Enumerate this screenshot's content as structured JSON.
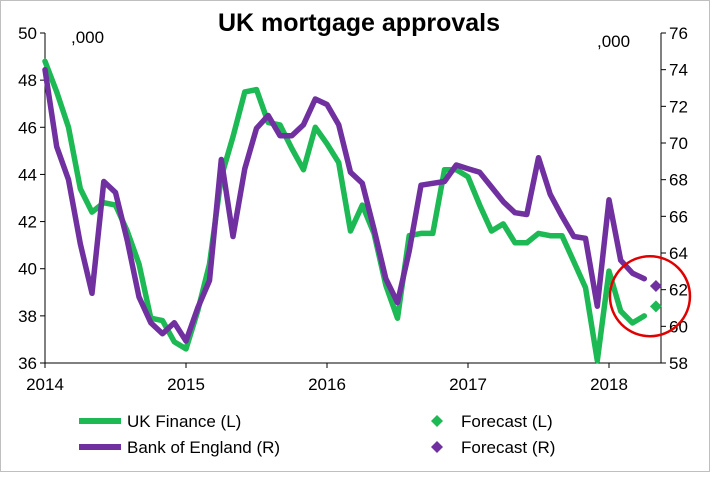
{
  "chart_data": {
    "type": "line",
    "title": "UK mortgage approvals",
    "unit_left": ",000",
    "unit_right": ",000",
    "x_ticks": [
      "2014",
      "2015",
      "2016",
      "2017",
      "2018"
    ],
    "x_range": [
      2014.0,
      2018.5
    ],
    "y_left": {
      "ticks": [
        "36",
        "38",
        "40",
        "42",
        "44",
        "46",
        "48",
        "50"
      ],
      "range": [
        36,
        50
      ]
    },
    "y_right": {
      "ticks": [
        "58",
        "60",
        "62",
        "64",
        "66",
        "68",
        "70",
        "72",
        "74",
        "76"
      ],
      "range": [
        58,
        76
      ]
    },
    "grid": false,
    "legend_position": "bottom",
    "colors": {
      "uk_finance": "#1db954",
      "boe": "#7030a0"
    },
    "series": [
      {
        "name": "UK Finance (L)",
        "axis": "left",
        "color": "#1db954",
        "x": [
          2014.0,
          2014.083,
          2014.167,
          2014.25,
          2014.333,
          2014.417,
          2014.5,
          2014.583,
          2014.667,
          2014.75,
          2014.833,
          2014.917,
          2015.0,
          2015.083,
          2015.167,
          2015.25,
          2015.333,
          2015.417,
          2015.5,
          2015.583,
          2015.667,
          2015.75,
          2015.833,
          2015.917,
          2016.0,
          2016.083,
          2016.167,
          2016.25,
          2016.333,
          2016.417,
          2016.5,
          2016.583,
          2016.667,
          2016.75,
          2016.833,
          2016.917,
          2017.0,
          2017.083,
          2017.167,
          2017.25,
          2017.333,
          2017.417,
          2017.5,
          2017.583,
          2017.667,
          2017.75,
          2017.833,
          2017.917,
          2018.0,
          2018.083,
          2018.167,
          2018.25
        ],
        "values": [
          48.8,
          47.5,
          46.0,
          43.4,
          42.4,
          42.8,
          42.7,
          41.6,
          40.2,
          37.9,
          37.8,
          36.9,
          36.6,
          38.2,
          40.2,
          43.9,
          45.6,
          47.5,
          47.6,
          46.2,
          46.1,
          45.1,
          44.2,
          46.0,
          45.3,
          44.5,
          41.6,
          42.7,
          41.5,
          39.3,
          37.9,
          41.4,
          41.5,
          41.5,
          44.2,
          44.2,
          43.9,
          42.7,
          41.6,
          41.9,
          41.1,
          41.1,
          41.5,
          41.4,
          41.4,
          40.3,
          39.2,
          36.1,
          39.9,
          38.2,
          37.7,
          38.0
        ]
      },
      {
        "name": "Bank of England (R)",
        "axis": "right",
        "color": "#7030a0",
        "x": [
          2014.0,
          2014.083,
          2014.167,
          2014.25,
          2014.333,
          2014.417,
          2014.5,
          2014.583,
          2014.667,
          2014.75,
          2014.833,
          2014.917,
          2015.0,
          2015.083,
          2015.167,
          2015.25,
          2015.333,
          2015.417,
          2015.5,
          2015.583,
          2015.667,
          2015.75,
          2015.833,
          2015.917,
          2016.0,
          2016.083,
          2016.167,
          2016.25,
          2016.333,
          2016.417,
          2016.5,
          2016.583,
          2016.667,
          2016.75,
          2016.833,
          2016.917,
          2017.0,
          2017.083,
          2017.167,
          2017.25,
          2017.333,
          2017.417,
          2017.5,
          2017.583,
          2017.667,
          2017.75,
          2017.833,
          2017.917,
          2018.0,
          2018.083,
          2018.167,
          2018.25
        ],
        "values": [
          74.0,
          69.8,
          68.0,
          64.5,
          61.8,
          67.9,
          67.3,
          64.7,
          61.6,
          60.2,
          59.6,
          60.2,
          59.2,
          61.0,
          62.5,
          69.1,
          64.9,
          68.6,
          70.8,
          71.5,
          70.4,
          70.4,
          71.0,
          72.4,
          72.1,
          71.0,
          68.4,
          67.8,
          65.3,
          62.6,
          61.3,
          64.1,
          67.7,
          67.8,
          67.9,
          68.8,
          68.6,
          68.4,
          67.6,
          66.8,
          66.2,
          66.1,
          69.2,
          67.2,
          66.0,
          64.9,
          64.8,
          61.1,
          66.9,
          63.6,
          62.9,
          62.6
        ]
      },
      {
        "name": "Forecast (L)",
        "axis": "left",
        "color": "#1db954",
        "marker": "diamond",
        "x": [
          2018.333
        ],
        "values": [
          38.4
        ]
      },
      {
        "name": "Forecast (R)",
        "axis": "right",
        "color": "#7030a0",
        "marker": "diamond",
        "x": [
          2018.333
        ],
        "values": [
          62.2
        ]
      }
    ],
    "annotation": {
      "type": "circle",
      "color": "#e00000",
      "around": "forecast points"
    }
  },
  "legend": [
    {
      "label": "UK Finance (L)",
      "color": "#1db954",
      "style": "line"
    },
    {
      "label": "Forecast (L)",
      "color": "#1db954",
      "style": "diamond"
    },
    {
      "label": "Bank of England (R)",
      "color": "#7030a0",
      "style": "line"
    },
    {
      "label": "Forecast (R)",
      "color": "#7030a0",
      "style": "diamond"
    }
  ]
}
